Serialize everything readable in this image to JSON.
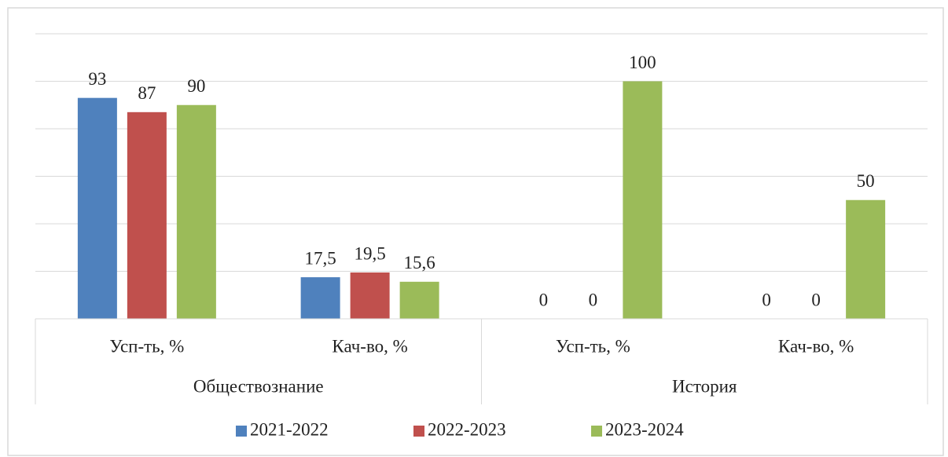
{
  "chart_data": {
    "type": "bar",
    "categories": [
      "Усп-ть, %",
      "Кач-во, %",
      "Усп-ть, %",
      "Кач-во, %"
    ],
    "groups": [
      "Обществознание",
      "История"
    ],
    "series": [
      {
        "name": "2021-2022",
        "color": "#4f81bd",
        "values": [
          93,
          17.5,
          0,
          0
        ],
        "value_labels": [
          "93",
          "17,5",
          "0",
          "0"
        ]
      },
      {
        "name": "2022-2023",
        "color": "#c0504d",
        "values": [
          87,
          19.5,
          0,
          0
        ],
        "value_labels": [
          "87",
          "19,5",
          "0",
          "0"
        ]
      },
      {
        "name": "2023-2024",
        "color": "#9bbb59",
        "values": [
          90,
          15.6,
          100,
          50
        ],
        "value_labels": [
          "90",
          "15,6",
          "100",
          "50"
        ]
      }
    ],
    "ylim": [
      0,
      120
    ],
    "yticks": [
      0,
      20,
      40,
      60,
      80,
      100,
      120
    ],
    "grid": true,
    "legend": "bottom"
  }
}
